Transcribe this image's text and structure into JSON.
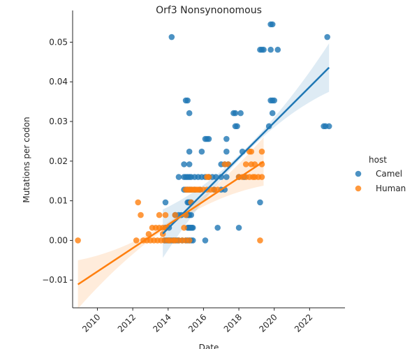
{
  "chart_data": {
    "type": "scatter",
    "title": "Orf3 Nonsynonomous",
    "xlabel": "Date",
    "ylabel": "Mutations per codon",
    "xlim": [
      2008.6,
      2024.0
    ],
    "ylim": [
      -0.017,
      0.058
    ],
    "xticks": [
      2010,
      2012,
      2014,
      2016,
      2018,
      2020,
      2022
    ],
    "xtick_labels": [
      "2010",
      "2012",
      "2014",
      "2016",
      "2018",
      "2020",
      "2022"
    ],
    "yticks": [
      -0.01,
      0.0,
      0.01,
      0.02,
      0.03,
      0.04,
      0.05
    ],
    "ytick_labels": [
      "−0.01",
      "0.00",
      "0.01",
      "0.02",
      "0.03",
      "0.04",
      "0.05"
    ],
    "grid": false,
    "legend": {
      "title": "host",
      "placement": "right"
    },
    "series": [
      {
        "name": "Camel",
        "color": "#1f77b4",
        "points": [
          [
            2013.8,
            0.0
          ],
          [
            2013.9,
            0.0
          ],
          [
            2014.0,
            0.0
          ],
          [
            2014.1,
            0.0
          ],
          [
            2014.2,
            0.0
          ],
          [
            2014.3,
            0.0
          ],
          [
            2014.4,
            0.0
          ],
          [
            2014.5,
            0.0
          ],
          [
            2014.6,
            0.0
          ],
          [
            2014.8,
            0.0
          ],
          [
            2015.0,
            0.0
          ],
          [
            2015.1,
            0.0
          ],
          [
            2015.2,
            0.0
          ],
          [
            2015.3,
            0.0
          ],
          [
            2015.4,
            0.0
          ],
          [
            2016.1,
            0.0
          ],
          [
            2013.85,
            0.0032
          ],
          [
            2014.05,
            0.0032
          ],
          [
            2015.1,
            0.0032
          ],
          [
            2015.15,
            0.0032
          ],
          [
            2015.2,
            0.0032
          ],
          [
            2015.25,
            0.0032
          ],
          [
            2015.3,
            0.0032
          ],
          [
            2015.35,
            0.0032
          ],
          [
            2015.4,
            0.0032
          ],
          [
            2016.8,
            0.0032
          ],
          [
            2018.0,
            0.0032
          ],
          [
            2014.4,
            0.0064
          ],
          [
            2014.6,
            0.0064
          ],
          [
            2014.75,
            0.0064
          ],
          [
            2015.05,
            0.0064
          ],
          [
            2015.15,
            0.0064
          ],
          [
            2015.2,
            0.0064
          ],
          [
            2015.3,
            0.0064
          ],
          [
            2013.85,
            0.0096
          ],
          [
            2015.1,
            0.0096
          ],
          [
            2015.15,
            0.0096
          ],
          [
            2015.2,
            0.0096
          ],
          [
            2015.25,
            0.0096
          ],
          [
            2015.3,
            0.0096
          ],
          [
            2019.2,
            0.0096
          ],
          [
            2014.9,
            0.0128
          ],
          [
            2015.0,
            0.0128
          ],
          [
            2015.1,
            0.0128
          ],
          [
            2015.2,
            0.0128
          ],
          [
            2015.3,
            0.0128
          ],
          [
            2015.5,
            0.0128
          ],
          [
            2015.8,
            0.0128
          ],
          [
            2016.6,
            0.0128
          ],
          [
            2017.0,
            0.0128
          ],
          [
            2017.2,
            0.0128
          ],
          [
            2014.6,
            0.016
          ],
          [
            2014.9,
            0.016
          ],
          [
            2015.0,
            0.016
          ],
          [
            2015.1,
            0.016
          ],
          [
            2015.2,
            0.016
          ],
          [
            2015.3,
            0.016
          ],
          [
            2015.5,
            0.016
          ],
          [
            2015.7,
            0.016
          ],
          [
            2015.9,
            0.016
          ],
          [
            2016.1,
            0.016
          ],
          [
            2016.3,
            0.016
          ],
          [
            2016.5,
            0.016
          ],
          [
            2016.7,
            0.016
          ],
          [
            2017.0,
            0.016
          ],
          [
            2017.3,
            0.016
          ],
          [
            2018.0,
            0.016
          ],
          [
            2018.3,
            0.016
          ],
          [
            2014.9,
            0.0192
          ],
          [
            2015.2,
            0.0192
          ],
          [
            2017.0,
            0.0192
          ],
          [
            2017.2,
            0.0192
          ],
          [
            2017.4,
            0.0192
          ],
          [
            2015.2,
            0.0224
          ],
          [
            2015.9,
            0.0224
          ],
          [
            2017.3,
            0.0224
          ],
          [
            2018.2,
            0.0224
          ],
          [
            2016.1,
            0.0256
          ],
          [
            2016.2,
            0.0256
          ],
          [
            2016.3,
            0.0256
          ],
          [
            2017.3,
            0.0256
          ],
          [
            2017.8,
            0.0288
          ],
          [
            2017.9,
            0.0288
          ],
          [
            2019.7,
            0.0288
          ],
          [
            2022.8,
            0.0288
          ],
          [
            2022.9,
            0.0288
          ],
          [
            2023.1,
            0.0288
          ],
          [
            2015.2,
            0.0321
          ],
          [
            2017.7,
            0.0321
          ],
          [
            2017.8,
            0.0321
          ],
          [
            2018.1,
            0.0321
          ],
          [
            2019.9,
            0.0321
          ],
          [
            2015.0,
            0.0353
          ],
          [
            2015.1,
            0.0353
          ],
          [
            2019.8,
            0.0353
          ],
          [
            2019.9,
            0.0353
          ],
          [
            2020.0,
            0.0353
          ],
          [
            2019.2,
            0.0481
          ],
          [
            2019.3,
            0.0481
          ],
          [
            2019.4,
            0.0481
          ],
          [
            2019.8,
            0.0481
          ],
          [
            2020.2,
            0.0481
          ],
          [
            2014.2,
            0.0513
          ],
          [
            2023.0,
            0.0513
          ],
          [
            2019.8,
            0.0545
          ],
          [
            2019.9,
            0.0545
          ]
        ],
        "fit": {
          "x": [
            2013.7,
            2023.1
          ],
          "y": [
            0.0017,
            0.0436
          ]
        }
      },
      {
        "name": "Human",
        "color": "#ff7f0e",
        "points": [
          [
            2008.9,
            0.0
          ],
          [
            2012.2,
            0.0
          ],
          [
            2012.6,
            0.0
          ],
          [
            2012.8,
            0.0
          ],
          [
            2013.0,
            0.0
          ],
          [
            2013.2,
            0.0
          ],
          [
            2013.4,
            0.0
          ],
          [
            2013.6,
            0.0
          ],
          [
            2013.8,
            0.0
          ],
          [
            2014.0,
            0.0
          ],
          [
            2014.1,
            0.0
          ],
          [
            2014.3,
            0.0
          ],
          [
            2014.4,
            0.0
          ],
          [
            2014.6,
            0.0
          ],
          [
            2014.8,
            0.0
          ],
          [
            2015.0,
            0.0
          ],
          [
            2015.2,
            0.0
          ],
          [
            2019.2,
            0.0
          ],
          [
            2012.9,
            0.0016
          ],
          [
            2013.7,
            0.0016
          ],
          [
            2013.1,
            0.0032
          ],
          [
            2013.3,
            0.0032
          ],
          [
            2013.5,
            0.0032
          ],
          [
            2013.7,
            0.0032
          ],
          [
            2013.9,
            0.0032
          ],
          [
            2014.9,
            0.0032
          ],
          [
            2012.45,
            0.0064
          ],
          [
            2013.5,
            0.0064
          ],
          [
            2013.85,
            0.0064
          ],
          [
            2014.4,
            0.0064
          ],
          [
            2015.0,
            0.0064
          ],
          [
            2012.3,
            0.0096
          ],
          [
            2015.3,
            0.0096
          ],
          [
            2015.0,
            0.0128
          ],
          [
            2015.1,
            0.0128
          ],
          [
            2015.2,
            0.0128
          ],
          [
            2015.3,
            0.0128
          ],
          [
            2015.4,
            0.0128
          ],
          [
            2015.5,
            0.0128
          ],
          [
            2015.6,
            0.0128
          ],
          [
            2015.7,
            0.0128
          ],
          [
            2015.8,
            0.0128
          ],
          [
            2016.0,
            0.0128
          ],
          [
            2016.2,
            0.0128
          ],
          [
            2016.4,
            0.0128
          ],
          [
            2016.6,
            0.0128
          ],
          [
            2016.8,
            0.0128
          ],
          [
            2016.2,
            0.016
          ],
          [
            2016.3,
            0.016
          ],
          [
            2018.0,
            0.016
          ],
          [
            2018.2,
            0.016
          ],
          [
            2018.4,
            0.016
          ],
          [
            2018.6,
            0.016
          ],
          [
            2018.8,
            0.016
          ],
          [
            2018.9,
            0.016
          ],
          [
            2019.1,
            0.016
          ],
          [
            2019.3,
            0.016
          ],
          [
            2017.2,
            0.0192
          ],
          [
            2017.4,
            0.0192
          ],
          [
            2018.4,
            0.0192
          ],
          [
            2018.7,
            0.0192
          ],
          [
            2018.9,
            0.0192
          ],
          [
            2019.3,
            0.0192
          ],
          [
            2018.6,
            0.0224
          ],
          [
            2018.7,
            0.0224
          ],
          [
            2019.3,
            0.0224
          ]
        ],
        "fit": {
          "x": [
            2008.9,
            2019.4
          ],
          "y": [
            -0.0111,
            0.0199
          ]
        }
      }
    ]
  }
}
